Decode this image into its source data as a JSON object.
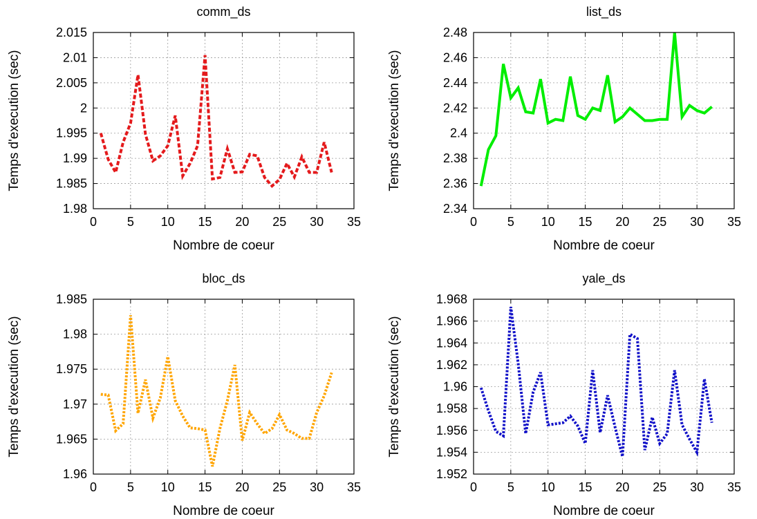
{
  "chart_data": [
    {
      "type": "line",
      "title": "comm_ds",
      "xlabel": "Nombre de coeur",
      "ylabel": "Temps d'execution (sec)",
      "xlim": [
        0,
        35
      ],
      "ylim": [
        1.98,
        2.015
      ],
      "xticks": [
        "0",
        "5",
        "10",
        "15",
        "20",
        "25",
        "30",
        "35"
      ],
      "yticks": [
        "1.98",
        "1.985",
        "1.99",
        "1.995",
        "2",
        "2.005",
        "2.01",
        "2.015"
      ],
      "grid": true,
      "series": [
        {
          "color": "#e41a1c",
          "line_style": "dashed",
          "x": [
            1,
            2,
            3,
            4,
            5,
            6,
            7,
            8,
            9,
            10,
            11,
            12,
            13,
            14,
            15,
            16,
            17,
            18,
            19,
            20,
            21,
            22,
            23,
            24,
            25,
            26,
            27,
            28,
            29,
            30,
            31,
            32
          ],
          "y": [
            1.995,
            1.9898,
            1.9872,
            1.9932,
            1.997,
            2.0066,
            1.9948,
            1.9895,
            1.9905,
            1.9925,
            1.9985,
            1.9865,
            1.989,
            1.9925,
            2.0105,
            1.9859,
            1.9862,
            1.9919,
            1.9872,
            1.9873,
            1.9908,
            1.9905,
            1.9862,
            1.9845,
            1.9858,
            1.989,
            1.9863,
            1.9903,
            1.9872,
            1.9872,
            1.9932,
            1.9872
          ]
        }
      ]
    },
    {
      "type": "line",
      "title": "list_ds",
      "xlabel": "Nombre de coeur",
      "ylabel": "Temps d'execution (sec)",
      "xlim": [
        0,
        35
      ],
      "ylim": [
        2.34,
        2.48
      ],
      "xticks": [
        "0",
        "5",
        "10",
        "15",
        "20",
        "25",
        "30",
        "35"
      ],
      "yticks": [
        "2.34",
        "2.36",
        "2.38",
        "2.4",
        "2.42",
        "2.44",
        "2.46",
        "2.48"
      ],
      "grid": true,
      "series": [
        {
          "color": "#00ee00",
          "line_style": "solid",
          "x": [
            1,
            2,
            3,
            4,
            5,
            6,
            7,
            8,
            9,
            10,
            11,
            12,
            13,
            14,
            15,
            16,
            17,
            18,
            19,
            20,
            21,
            22,
            23,
            24,
            25,
            26,
            27,
            28,
            29,
            30,
            31,
            32
          ],
          "y": [
            2.358,
            2.387,
            2.398,
            2.455,
            2.428,
            2.436,
            2.417,
            2.416,
            2.443,
            2.408,
            2.411,
            2.41,
            2.445,
            2.414,
            2.411,
            2.42,
            2.418,
            2.446,
            2.409,
            2.413,
            2.42,
            2.415,
            2.41,
            2.41,
            2.411,
            2.411,
            2.48,
            2.413,
            2.422,
            2.418,
            2.416,
            2.421
          ]
        }
      ]
    },
    {
      "type": "line",
      "title": "bloc_ds",
      "xlabel": "Nombre de coeur",
      "ylabel": "Temps d'execution (sec)",
      "xlim": [
        0,
        35
      ],
      "ylim": [
        1.96,
        1.985
      ],
      "xticks": [
        "0",
        "5",
        "10",
        "15",
        "20",
        "25",
        "30",
        "35"
      ],
      "yticks": [
        "1.96",
        "1.965",
        "1.97",
        "1.975",
        "1.98",
        "1.985"
      ],
      "grid": true,
      "series": [
        {
          "color": "#ffa500",
          "line_style": "dotted",
          "x": [
            1,
            2,
            3,
            4,
            5,
            6,
            7,
            8,
            9,
            10,
            11,
            12,
            13,
            14,
            15,
            16,
            17,
            18,
            19,
            20,
            21,
            22,
            23,
            24,
            25,
            26,
            27,
            28,
            29,
            30,
            31,
            32
          ],
          "y": [
            1.9714,
            1.9713,
            1.9662,
            1.9672,
            1.9827,
            1.9687,
            1.9735,
            1.968,
            1.9709,
            1.9768,
            1.9705,
            1.9683,
            1.9666,
            1.9665,
            1.9663,
            1.9611,
            1.9665,
            1.9705,
            1.9756,
            1.9648,
            1.9688,
            1.9672,
            1.9658,
            1.9665,
            1.9685,
            1.9663,
            1.9658,
            1.9651,
            1.9651,
            1.9688,
            1.9712,
            1.9745
          ]
        }
      ]
    },
    {
      "type": "line",
      "title": "yale_ds",
      "xlabel": "Nombre de coeur",
      "ylabel": "Temps d'execution (sec)",
      "xlim": [
        0,
        35
      ],
      "ylim": [
        1.952,
        1.968
      ],
      "xticks": [
        "0",
        "5",
        "10",
        "15",
        "20",
        "25",
        "30",
        "35"
      ],
      "yticks": [
        "1.952",
        "1.954",
        "1.956",
        "1.958",
        "1.96",
        "1.962",
        "1.964",
        "1.966",
        "1.968"
      ],
      "grid": true,
      "series": [
        {
          "color": "#1010c8",
          "line_style": "dotted",
          "x": [
            1,
            2,
            3,
            4,
            5,
            6,
            7,
            8,
            9,
            10,
            11,
            12,
            13,
            14,
            15,
            16,
            17,
            18,
            19,
            20,
            21,
            22,
            23,
            24,
            25,
            26,
            27,
            28,
            29,
            30,
            31,
            32
          ],
          "y": [
            1.9599,
            1.9578,
            1.9559,
            1.9555,
            1.9673,
            1.9621,
            1.9557,
            1.9595,
            1.9613,
            1.9565,
            1.9566,
            1.9567,
            1.9573,
            1.9564,
            1.9548,
            1.9615,
            1.9558,
            1.9592,
            1.9563,
            1.9536,
            1.9648,
            1.9644,
            1.9542,
            1.9572,
            1.9548,
            1.9557,
            1.9615,
            1.9565,
            1.9552,
            1.954,
            1.9607,
            1.9567
          ]
        }
      ]
    }
  ]
}
